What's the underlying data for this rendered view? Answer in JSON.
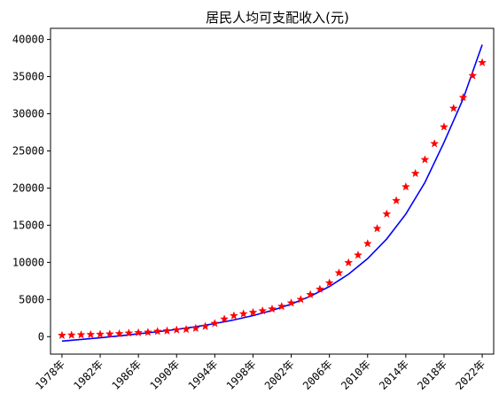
{
  "chart_data": {
    "type": "scatter",
    "title": "居民人均可支配收入(元)",
    "xlabel": "",
    "ylabel": "",
    "xlim": [
      1976.8,
      2023.2
    ],
    "ylim": [
      -2350,
      41500
    ],
    "grid": false,
    "colors": {
      "points": "#ff0000",
      "fit_line": "#0000ff",
      "axis": "#000000"
    },
    "x_ticks": [
      1978,
      1982,
      1986,
      1990,
      1994,
      1998,
      2002,
      2006,
      2010,
      2014,
      2018,
      2022
    ],
    "x_tick_labels": [
      "1978年",
      "1982年",
      "1986年",
      "1990年",
      "1994年",
      "1998年",
      "2002年",
      "2006年",
      "2010年",
      "2014年",
      "2018年",
      "2022年"
    ],
    "y_ticks": [
      0,
      5000,
      10000,
      15000,
      20000,
      25000,
      30000,
      35000,
      40000
    ],
    "y_tick_labels": [
      "0",
      "5000",
      "10000",
      "15000",
      "20000",
      "25000",
      "30000",
      "35000",
      "40000"
    ],
    "series": [
      {
        "type": "scatter",
        "marker": "star",
        "color": "#ff0000",
        "x": [
          1978,
          1979,
          1980,
          1981,
          1982,
          1983,
          1984,
          1985,
          1986,
          1987,
          1988,
          1989,
          1990,
          1991,
          1992,
          1993,
          1994,
          1995,
          1996,
          1997,
          1998,
          1999,
          2000,
          2001,
          2002,
          2003,
          2004,
          2005,
          2006,
          2007,
          2008,
          2009,
          2010,
          2011,
          2012,
          2013,
          2014,
          2015,
          2016,
          2017,
          2018,
          2019,
          2020,
          2021,
          2022
        ],
        "y": [
          171,
          212,
          247,
          282,
          318,
          350,
          394,
          478,
          530,
          591,
          710,
          780,
          904,
          976,
          1125,
          1385,
          1780,
          2363,
          2814,
          3070,
          3254,
          3478,
          3721,
          4070,
          4532,
          5007,
          5661,
          6385,
          7229,
          8584,
          9957,
          10977,
          12520,
          14551,
          16510,
          18311,
          20167,
          21966,
          23821,
          25974,
          28228,
          30733,
          32189,
          35128,
          36883
        ]
      },
      {
        "type": "line",
        "color": "#0000ff",
        "x": [
          1978,
          1980,
          1982,
          1984,
          1986,
          1988,
          1990,
          1992,
          1994,
          1996,
          1998,
          2000,
          2002,
          2004,
          2006,
          2008,
          2010,
          2012,
          2014,
          2016,
          2018,
          2020,
          2022
        ],
        "y": [
          -600,
          -380,
          -150,
          100,
          380,
          660,
          980,
          1340,
          1760,
          2250,
          2830,
          3530,
          4380,
          5430,
          6750,
          8400,
          10500,
          13150,
          16500,
          20750,
          26150,
          32000,
          39300
        ]
      }
    ]
  }
}
